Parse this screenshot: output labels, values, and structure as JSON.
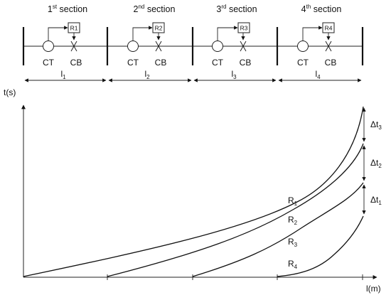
{
  "sections": [
    {
      "label_main": "1",
      "label_sup": "st",
      "label_rest": " section",
      "relay": "R1",
      "ct": "CT",
      "cb": "CB",
      "length_main": "l",
      "length_sub": "1"
    },
    {
      "label_main": "2",
      "label_sup": "nd",
      "label_rest": " section",
      "relay": "R2",
      "ct": "CT",
      "cb": "CB",
      "length_main": "l",
      "length_sub": "2"
    },
    {
      "label_main": "3",
      "label_sup": "rd",
      "label_rest": " section",
      "relay": "R3",
      "ct": "CT",
      "cb": "CB",
      "length_main": "l",
      "length_sub": "3"
    },
    {
      "label_main": "4",
      "label_sup": "th",
      "label_rest": " section",
      "relay": "R4",
      "ct": "CT",
      "cb": "CB",
      "length_main": "l",
      "length_sub": "4"
    }
  ],
  "plot": {
    "y_axis_label": "t(s)",
    "x_axis_label": "l(m)",
    "curves": [
      {
        "main": "R",
        "sub": "1"
      },
      {
        "main": "R",
        "sub": "2"
      },
      {
        "main": "R",
        "sub": "3"
      },
      {
        "main": "R",
        "sub": "4"
      }
    ],
    "intervals": [
      {
        "main": "Δt",
        "sub": "3"
      },
      {
        "main": "Δt",
        "sub": "2"
      },
      {
        "main": "Δt",
        "sub": "1"
      }
    ]
  }
}
